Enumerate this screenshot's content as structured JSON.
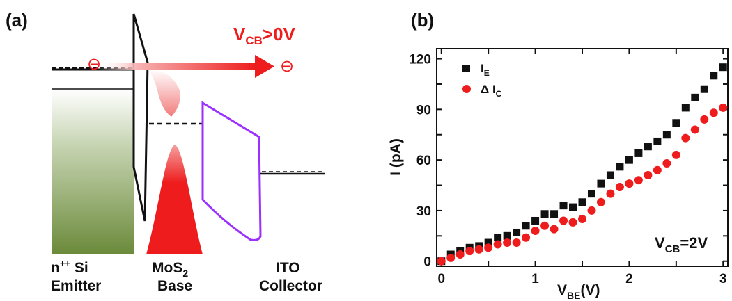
{
  "panel_a": {
    "panel_label": "(a)",
    "bias_label": "V",
    "bias_sub": "CB",
    "bias_rest": ">0V",
    "electron_symbol": "⊖",
    "emitter_line1": "n",
    "emitter_sup": "++",
    "emitter_line1_rest": " Si",
    "emitter_line2": "Emitter",
    "base_line1": "MoS",
    "base_sub": "2",
    "base_line2": "Base",
    "collector_line1": "ITO",
    "collector_line2": "Collector",
    "colors": {
      "arrow": "#ee1c1c",
      "emitter": "#6b8a3a",
      "base": "#ee1c1c",
      "barrier": "#9b30ff"
    }
  },
  "panel_b": {
    "panel_label": "(b)"
  },
  "chart_data": {
    "type": "scatter",
    "xlabel": "V",
    "xlabel_sub": "BE",
    "xlabel_unit": "(V)",
    "ylabel": "I (pA)",
    "xlim": [
      -0.05,
      3.05
    ],
    "ylim": [
      -3,
      126
    ],
    "xticks": [
      0,
      1,
      2,
      3
    ],
    "yticks": [
      0,
      30,
      60,
      90,
      120
    ],
    "annotation": {
      "main": "V",
      "sub": "CB",
      "rest": "=2V"
    },
    "legend_placement": "top-left",
    "series": [
      {
        "name": "I",
        "name_sub": "E",
        "marker": "square",
        "color": "#111111",
        "x": [
          0,
          0.1,
          0.2,
          0.3,
          0.4,
          0.5,
          0.6,
          0.7,
          0.8,
          0.9,
          1.0,
          1.1,
          1.2,
          1.3,
          1.4,
          1.5,
          1.6,
          1.7,
          1.8,
          1.9,
          2.0,
          2.1,
          2.2,
          2.3,
          2.4,
          2.5,
          2.6,
          2.7,
          2.8,
          2.9,
          3.0
        ],
        "y": [
          0,
          4,
          6,
          8,
          9,
          11,
          14,
          15,
          17,
          21,
          24,
          28,
          28,
          33,
          32,
          35,
          40,
          46,
          51,
          56,
          60,
          64,
          68,
          71,
          75,
          82,
          91,
          97,
          102,
          110,
          115
        ]
      },
      {
        "name": "Δ I",
        "name_sub": "C",
        "marker": "circle",
        "color": "#ee1c1c",
        "x": [
          0,
          0.1,
          0.2,
          0.3,
          0.4,
          0.5,
          0.6,
          0.7,
          0.8,
          0.9,
          1.0,
          1.1,
          1.2,
          1.3,
          1.4,
          1.5,
          1.6,
          1.7,
          1.8,
          1.9,
          2.0,
          2.1,
          2.2,
          2.3,
          2.4,
          2.5,
          2.6,
          2.7,
          2.8,
          2.9,
          3.0
        ],
        "y": [
          0,
          2,
          4,
          6,
          7,
          8,
          10,
          11,
          11,
          14,
          18,
          21,
          19,
          24,
          23,
          25,
          30,
          35,
          40,
          44,
          46,
          48,
          51,
          54,
          58,
          63,
          73,
          78,
          84,
          88,
          91
        ]
      }
    ]
  }
}
